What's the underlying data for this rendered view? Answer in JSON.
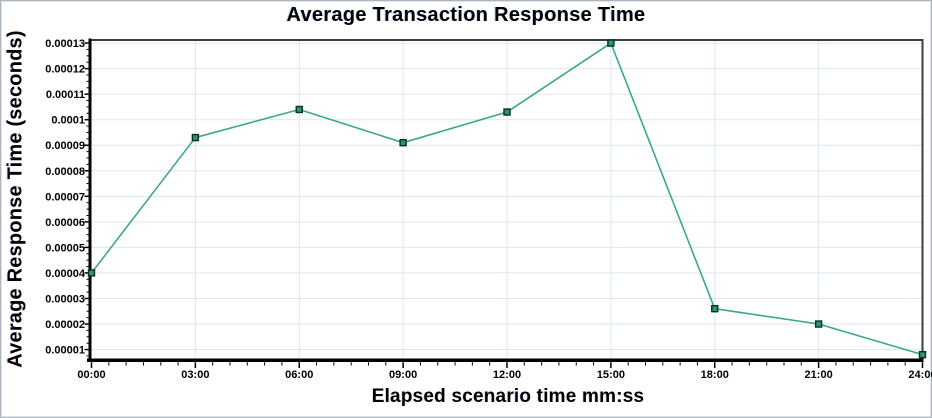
{
  "chart": {
    "title": "Average Transaction Response Time",
    "ylabel": "Average Response Time (seconds)",
    "xlabel": "Elapsed scenario time mm:ss"
  },
  "chart_data": {
    "type": "line",
    "title": "Average Transaction Response Time",
    "xlabel": "Elapsed scenario time mm:ss",
    "ylabel": "Average Response Time (seconds)",
    "x_unit": "minutes",
    "x": [
      0,
      3,
      6,
      9,
      12,
      15,
      18,
      21,
      24
    ],
    "x_tick_labels": [
      "00:00",
      "03:00",
      "06:00",
      "09:00",
      "12:00",
      "15:00",
      "18:00",
      "21:00",
      "24:00"
    ],
    "values": [
      4e-05,
      9.3e-05,
      0.000104,
      9.1e-05,
      0.000103,
      0.00013,
      2.6e-05,
      2e-05,
      8e-06
    ],
    "y_tick_values": [
      1e-05,
      2e-05,
      3e-05,
      4e-05,
      5e-05,
      6e-05,
      7e-05,
      8e-05,
      9e-05,
      0.0001,
      0.00011,
      0.00012,
      0.00013
    ],
    "y_tick_labels": [
      "0.00001",
      "0.00002",
      "0.00003",
      "0.00004",
      "0.00005",
      "0.00006",
      "0.00007",
      "0.00008",
      "0.00009",
      "0.0001",
      "0.00011",
      "0.00012",
      "0.00013"
    ],
    "xlim": [
      0,
      24
    ],
    "ylim": [
      6.5e-06,
      0.0001312
    ],
    "grid": true,
    "legend_visible": false,
    "x_minor_step": 0.5,
    "y_minor_step": 2.5e-06,
    "last_x_label_clipped": "24:0",
    "colors": {
      "line": "#3da78a",
      "marker_fill": "#2d9478",
      "marker_stroke": "#0a2e22",
      "grid": "#dce6f3",
      "axis": "#000000",
      "frame": "#3e3e3e",
      "tick_text": "#000000"
    }
  }
}
